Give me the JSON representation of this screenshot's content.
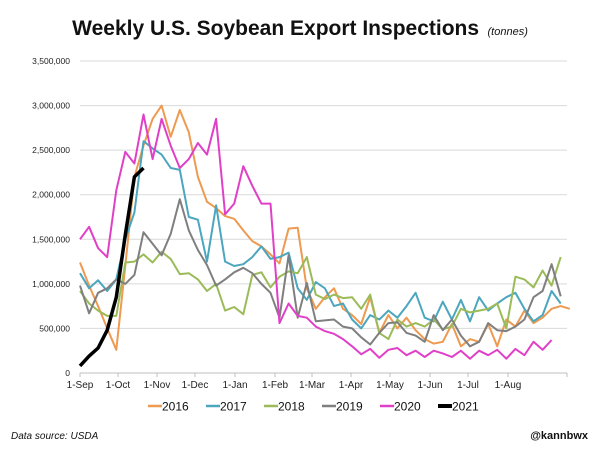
{
  "chart_data": {
    "type": "line",
    "title": "Weekly U.S. Soybean Export Inspections",
    "subtitle": "(tonnes)",
    "xlabel": "",
    "ylabel": "",
    "ylim": [
      0,
      3500000
    ],
    "yticks": [
      0,
      500000,
      1000000,
      1500000,
      2000000,
      2500000,
      3000000,
      3500000
    ],
    "ytick_labels": [
      "0",
      "500,000",
      "1,000,000",
      "1,500,000",
      "2,000,000",
      "2,500,000",
      "3,000,000",
      "3,500,000"
    ],
    "xtick_labels": [
      "1-Sep",
      "1-Oct",
      "1-Nov",
      "1-Dec",
      "1-Jan",
      "1-Feb",
      "1-Mar",
      "1-Apr",
      "1-May",
      "1-Jun",
      "1-Jul",
      "1-Aug"
    ],
    "x_unit": "week index from 1-Sep (0-52)",
    "grid": true,
    "legend_position": "bottom",
    "series": [
      {
        "name": "2016",
        "color": "#EE9A50",
        "values": [
          1240000,
          980000,
          750000,
          500000,
          260000,
          1200000,
          2200000,
          2550000,
          2850000,
          3000000,
          2650000,
          2950000,
          2700000,
          2200000,
          1920000,
          1850000,
          1760000,
          1730000,
          1600000,
          1480000,
          1420000,
          1330000,
          1230000,
          1620000,
          1630000,
          950000,
          720000,
          850000,
          950000,
          720000,
          650000,
          550000,
          850000,
          450000,
          650000,
          500000,
          620000,
          480000,
          380000,
          330000,
          350000,
          550000,
          300000,
          380000,
          350000,
          550000,
          300000,
          600000,
          520000,
          700000,
          560000,
          620000,
          720000,
          750000,
          720000
        ]
      },
      {
        "name": "2017",
        "color": "#4BA6BE",
        "values": [
          1120000,
          950000,
          1040000,
          920000,
          1050000,
          1500000,
          1800000,
          2600000,
          2520000,
          2450000,
          2300000,
          2280000,
          1750000,
          1720000,
          1250000,
          1880000,
          1250000,
          1200000,
          1220000,
          1300000,
          1420000,
          1280000,
          1300000,
          1350000,
          950000,
          820000,
          1020000,
          950000,
          750000,
          780000,
          600000,
          500000,
          650000,
          600000,
          700000,
          620000,
          750000,
          900000,
          620000,
          580000,
          800000,
          600000,
          820000,
          580000,
          850000,
          700000,
          780000,
          850000,
          900000,
          720000,
          580000,
          650000,
          920000,
          780000
        ]
      },
      {
        "name": "2018",
        "color": "#9BBB59",
        "values": [
          920000,
          780000,
          700000,
          640000,
          640000,
          1240000,
          1250000,
          1330000,
          1240000,
          1360000,
          1280000,
          1110000,
          1120000,
          1050000,
          920000,
          1000000,
          700000,
          740000,
          660000,
          1100000,
          1130000,
          960000,
          1080000,
          1140000,
          1120000,
          1300000,
          880000,
          830000,
          880000,
          840000,
          850000,
          720000,
          880000,
          450000,
          380000,
          600000,
          520000,
          560000,
          520000,
          600000,
          490000,
          520000,
          720000,
          680000,
          700000,
          720000,
          780000,
          500000,
          1080000,
          1050000,
          960000,
          1150000,
          980000,
          1300000
        ]
      },
      {
        "name": "2019",
        "color": "#7F7F7F",
        "values": [
          980000,
          670000,
          900000,
          950000,
          1050000,
          1000000,
          1100000,
          1580000,
          1450000,
          1320000,
          1560000,
          1950000,
          1600000,
          1380000,
          1210000,
          980000,
          1050000,
          1130000,
          1180000,
          1120000,
          1000000,
          900000,
          620000,
          1320000,
          620000,
          1010000,
          580000,
          590000,
          600000,
          520000,
          500000,
          400000,
          320000,
          450000,
          560000,
          570000,
          450000,
          420000,
          350000,
          650000,
          480000,
          600000,
          420000,
          300000,
          350000,
          560000,
          480000,
          470000,
          520000,
          600000,
          850000,
          920000,
          1220000,
          860000
        ]
      },
      {
        "name": "2020",
        "color": "#E040C8",
        "values": [
          1500000,
          1640000,
          1400000,
          1300000,
          2050000,
          2480000,
          2350000,
          2900000,
          2400000,
          2850000,
          2550000,
          2300000,
          2400000,
          2580000,
          2450000,
          2850000,
          1780000,
          1900000,
          2320000,
          2100000,
          1900000,
          1900000,
          560000,
          780000,
          640000,
          620000,
          520000,
          470000,
          440000,
          380000,
          300000,
          210000,
          270000,
          170000,
          260000,
          280000,
          200000,
          250000,
          180000,
          250000,
          220000,
          180000,
          250000,
          160000,
          250000,
          200000,
          260000,
          160000,
          270000,
          200000,
          350000,
          260000,
          370000
        ]
      },
      {
        "name": "2021",
        "color": "#000000",
        "values": [
          80000,
          190000,
          280000,
          480000,
          850000,
          1550000,
          2200000,
          2300000
        ]
      }
    ]
  },
  "footer": {
    "source": "Data source: USDA",
    "handle": "@kannbwx"
  }
}
